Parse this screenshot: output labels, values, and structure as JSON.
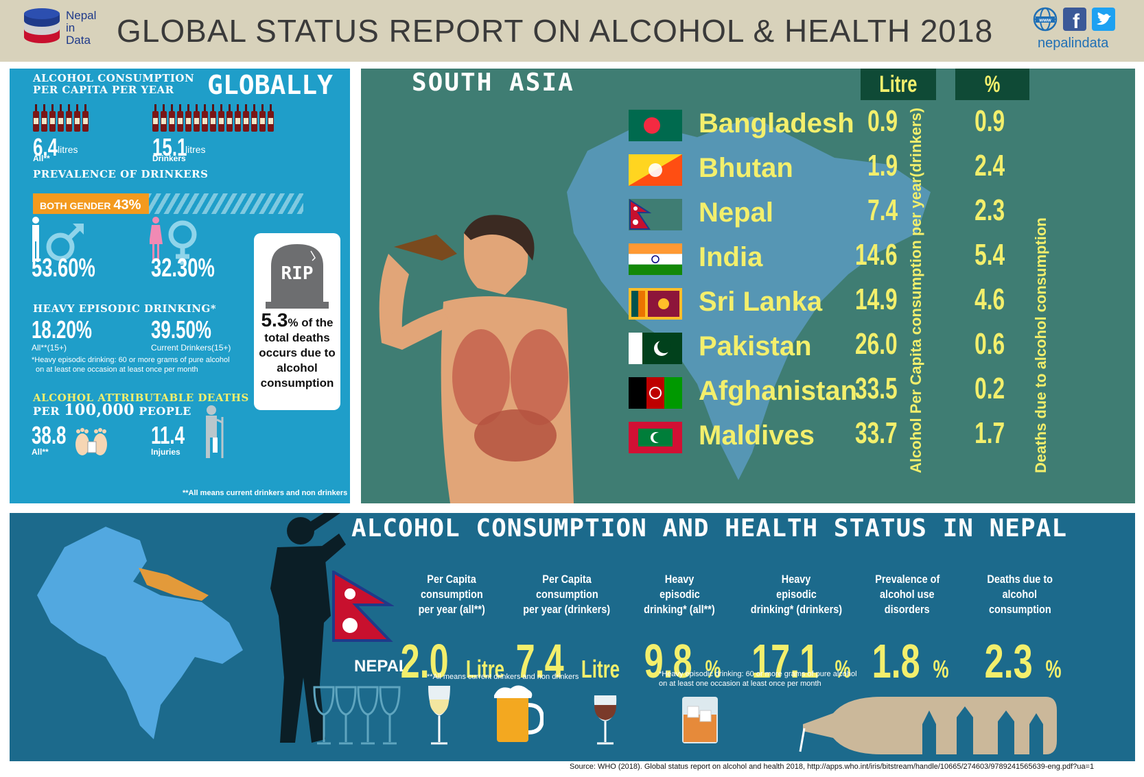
{
  "header": {
    "brand_line1": "Nepal",
    "brand_line2": "in",
    "brand_line3": "Data",
    "title": "GLOBAL STATUS REPORT ON ALCOHOL & HEALTH 2018",
    "site": "nepalindata",
    "icons": [
      "www-globe-icon",
      "facebook-icon",
      "twitter-icon"
    ]
  },
  "globally": {
    "heading_line1": "ALCOHOL CONSUMPTION",
    "heading_line2": "PER CAPITA PER YEAR",
    "big_title": "GLOBALLY",
    "all_value": "6.4",
    "all_unit": "litres",
    "all_label": "All**",
    "drinkers_value": "15.1",
    "drinkers_unit": "litres",
    "drinkers_label": "Drinkers",
    "prevalence_heading": "PREVALENCE OF DRINKERS",
    "both_gender_label": "BOTH GENDER",
    "both_gender_value": "43%",
    "both_gender_fraction": 0.43,
    "male_value": "53.60%",
    "female_value": "32.30%",
    "heavy_heading": "HEAVY EPISODIC DRINKING*",
    "heavy_all_value": "18.20%",
    "heavy_all_label": "All**(15+)",
    "heavy_current_value": "39.50%",
    "heavy_current_label": "Current Drinkers(15+)",
    "heavy_note_line1": "*Heavy episodic drinking:  60 or more grams of pure alcohol",
    "heavy_note_line2": "on at least one occasion at least once per month",
    "rip_label": "RIP",
    "rip_pct": "5.3",
    "rip_text_pct": "% of the",
    "rip_text_rest": "total deaths occurs due to alcohol consumption",
    "deaths_heading_line1": "ALCOHOL ATTRIBUTABLE DEATHS",
    "deaths_heading_line2_a": "PER",
    "deaths_heading_line2_b": "100,000",
    "deaths_heading_line2_c": "PEOPLE",
    "deaths_all_value": "38.8",
    "deaths_all_label": "All**",
    "deaths_injuries_value": "11.4",
    "deaths_injuries_label": "Injuries",
    "footnote": "**All means current drinkers and non drinkers"
  },
  "south_asia": {
    "title": "SOUTH ASIA",
    "col_litre": "Litre",
    "col_pct": "%",
    "vert_litre": "Alcohol Per Capita consumption per year(drinkers)",
    "vert_pct": "Deaths due to alcohol consumption",
    "countries": [
      {
        "name": "Bangladesh",
        "litre": "0.9",
        "pct": "0.9"
      },
      {
        "name": "Bhutan",
        "litre": "1.9",
        "pct": "2.4"
      },
      {
        "name": "Nepal",
        "litre": "7.4",
        "pct": "2.3"
      },
      {
        "name": "India",
        "litre": "14.6",
        "pct": "5.4"
      },
      {
        "name": "Sri Lanka",
        "litre": "14.9",
        "pct": "4.6"
      },
      {
        "name": "Pakistan",
        "litre": "26.0",
        "pct": "0.6"
      },
      {
        "name": "Afghanistan",
        "litre": "33.5",
        "pct": "0.2"
      },
      {
        "name": "Maldives",
        "litre": "33.7",
        "pct": "1.7"
      }
    ]
  },
  "nepal": {
    "title": "ALCOHOL CONSUMPTION AND HEALTH STATUS IN NEPAL",
    "label": "NEPAL",
    "stats": [
      {
        "l1": "Per Capita",
        "l2": "consumption",
        "l3": "per year (all**)",
        "value": "2.0",
        "unit": "Litre"
      },
      {
        "l1": "Per Capita",
        "l2": "consumption",
        "l3": "per year (drinkers)",
        "value": "7.4",
        "unit": "Litre"
      },
      {
        "l1": "Heavy",
        "l2": "episodic",
        "l3": "drinking* (all**)",
        "value": "9.8",
        "unit": "%"
      },
      {
        "l1": "Heavy",
        "l2": "episodic",
        "l3": "drinking* (drinkers)",
        "value": "17.1",
        "unit": "%"
      },
      {
        "l1": "Prevalence of",
        "l2": "alcohol use",
        "l3": "disorders",
        "value": "1.8",
        "unit": "%"
      },
      {
        "l1": "Deaths due to",
        "l2": "alcohol",
        "l3": "consumption",
        "value": "2.3",
        "unit": "%"
      }
    ],
    "note_all": "**All means current drinkers and non drinkers",
    "note_heavy_line1": "*Heavy episodic drinking:  60 or more grams of pure alcohol",
    "note_heavy_line2": "on at least one occasion at least once per month"
  },
  "source": "Source: WHO (2018). Global status report on alcohol and health 2018, http://apps.who.int/iris/bitstream/handle/10665/274603/9789241565639-eng.pdf?ua=1"
}
